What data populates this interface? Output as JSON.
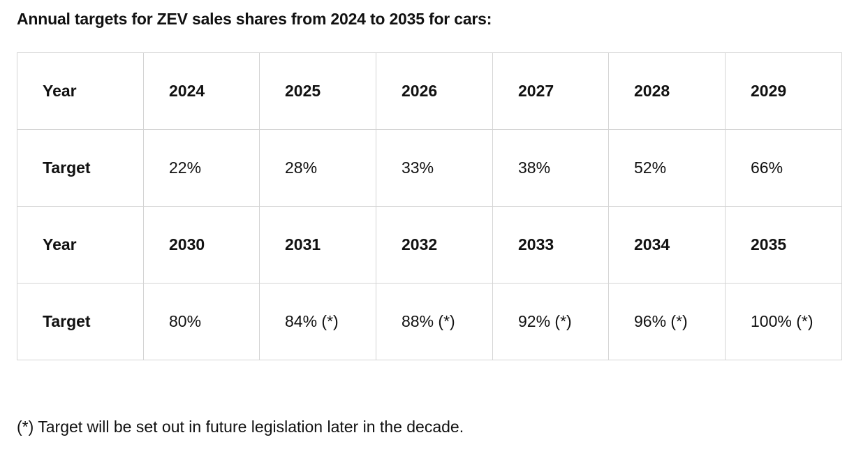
{
  "heading": "Annual targets for ZEV sales shares from 2024 to 2035 for cars:",
  "table": {
    "rows": [
      {
        "kind": "year",
        "label": "Year",
        "cells": [
          "2024",
          "2025",
          "2026",
          "2027",
          "2028",
          "2029"
        ]
      },
      {
        "kind": "target",
        "label": "Target",
        "cells": [
          "22%",
          "28%",
          "33%",
          "38%",
          "52%",
          "66%"
        ]
      },
      {
        "kind": "year",
        "label": "Year",
        "cells": [
          "2030",
          "2031",
          "2032",
          "2033",
          "2034",
          "2035"
        ]
      },
      {
        "kind": "target",
        "label": "Target",
        "cells": [
          "80%",
          "84% (*)",
          "88% (*)",
          "92% (*)",
          "96% (*)",
          "100% (*)"
        ]
      }
    ]
  },
  "footnote": "(*) Target will be set out in future legislation later in the decade."
}
